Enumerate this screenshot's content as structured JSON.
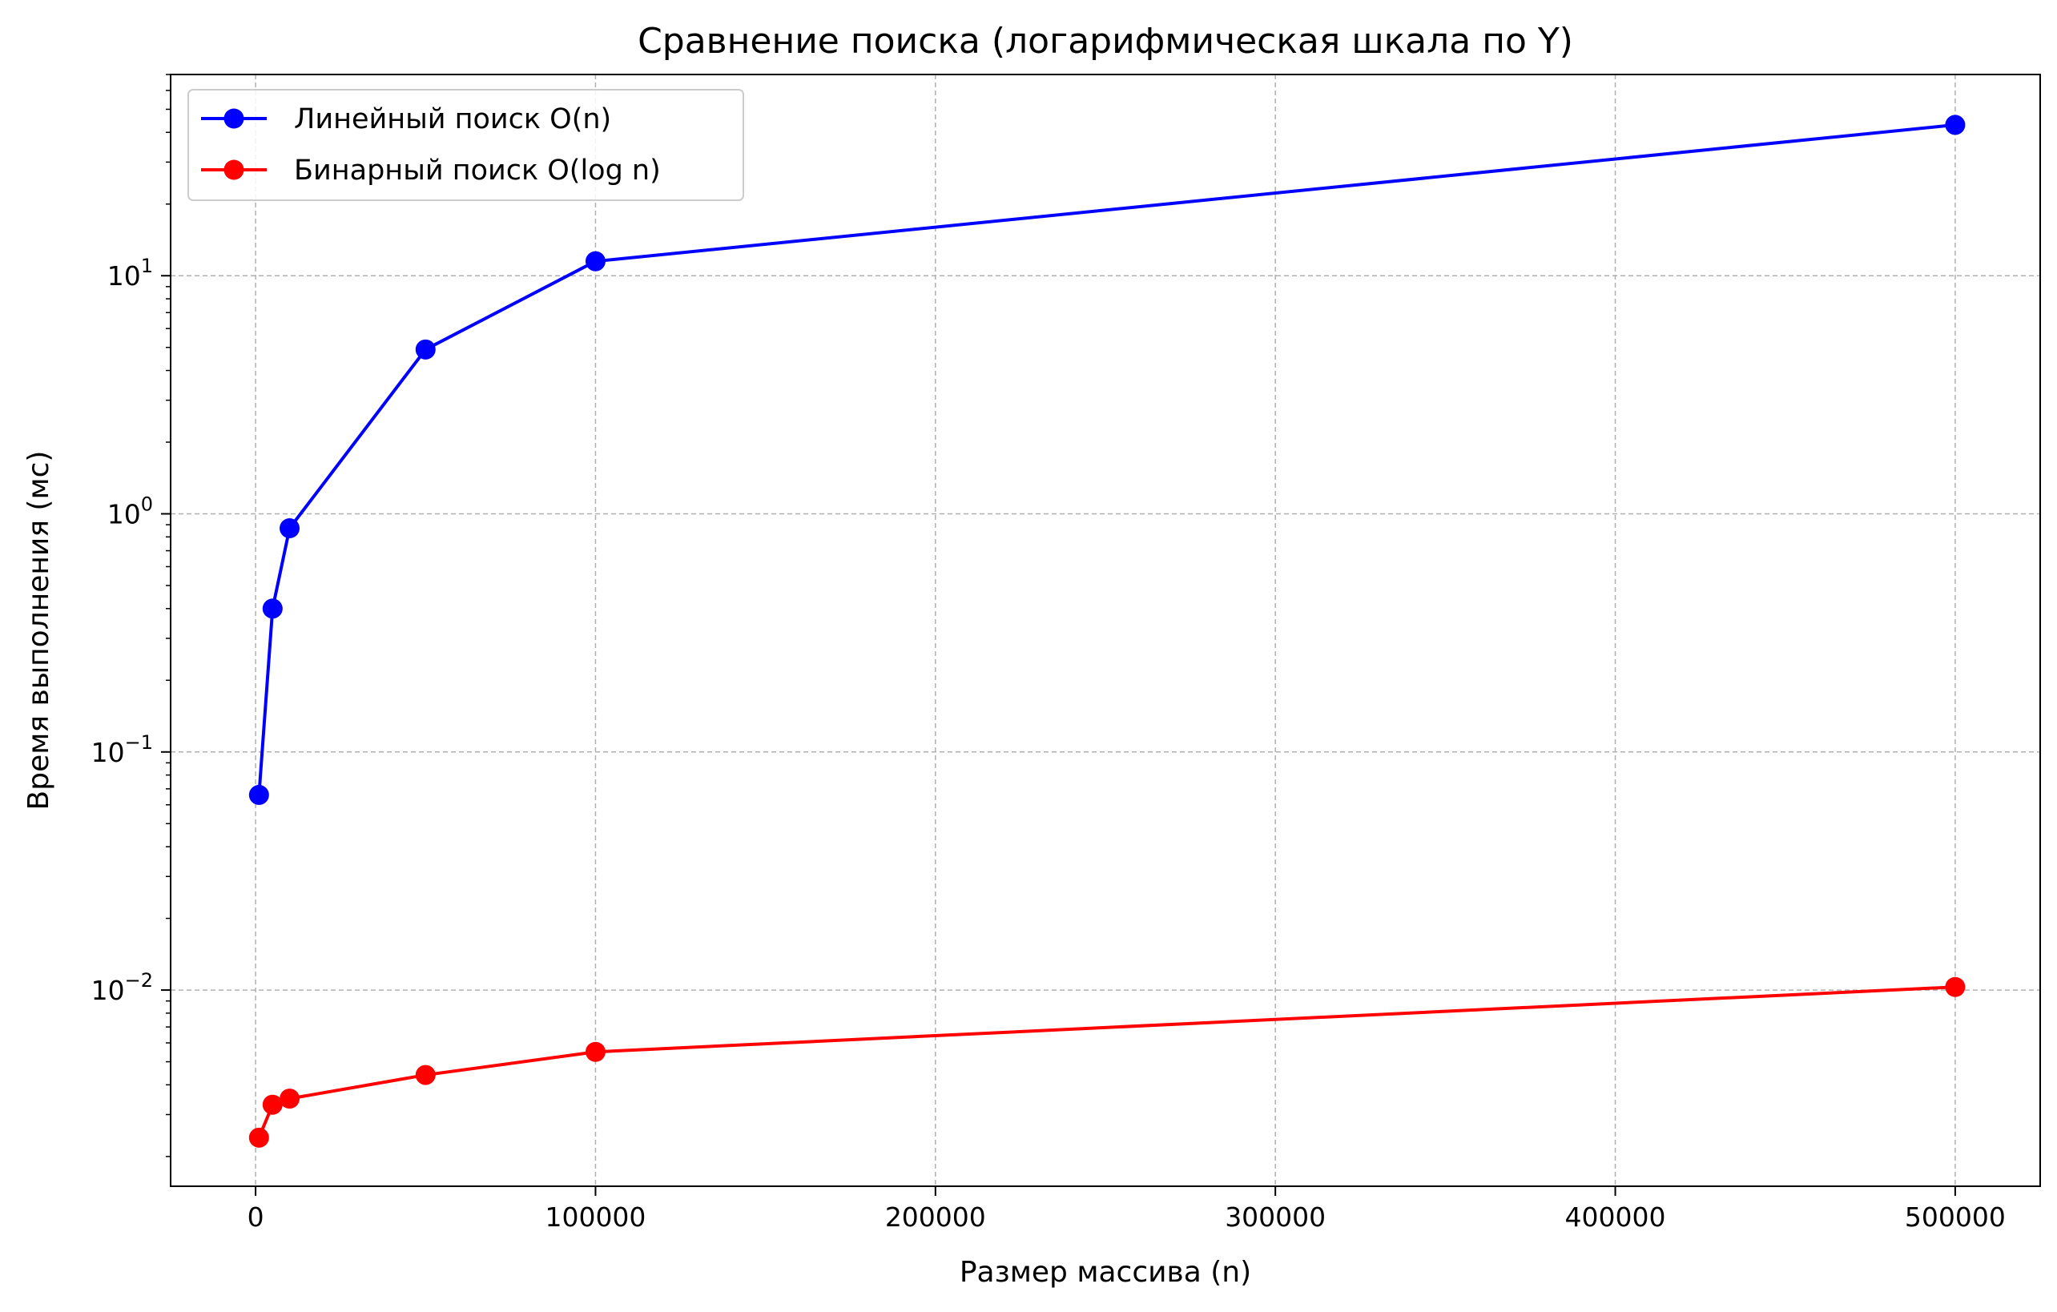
{
  "chart_data": {
    "type": "line",
    "title": "Сравнение поиска (логарифмическая шкала по Y)",
    "xlabel": "Размер массива (n)",
    "ylabel": "Время выполнения (мс)",
    "x_scale": "linear",
    "y_scale": "log",
    "xlim": [
      -25000,
      525000
    ],
    "ylim": [
      0.0015,
      70
    ],
    "x_ticks": [
      0,
      100000,
      200000,
      300000,
      400000,
      500000
    ],
    "x_tick_labels": [
      "0",
      "100000",
      "200000",
      "300000",
      "400000",
      "500000"
    ],
    "y_ticks": [
      0.01,
      0.1,
      1,
      10
    ],
    "y_tick_labels": [
      {
        "base": "10",
        "exp": "−2"
      },
      {
        "base": "10",
        "exp": "−1"
      },
      {
        "base": "10",
        "exp": "0"
      },
      {
        "base": "10",
        "exp": "1"
      }
    ],
    "grid": true,
    "legend_position": "top-left",
    "x": [
      1000,
      5000,
      10000,
      50000,
      100000,
      500000
    ],
    "series": [
      {
        "name": "Линейный поиск O(n)",
        "color": "#0000ff",
        "marker": "circle",
        "values": [
          0.066,
          0.4,
          0.87,
          4.9,
          11.5,
          43
        ]
      },
      {
        "name": "Бинарный поиск O(log n)",
        "color": "#ff0000",
        "marker": "circle",
        "values": [
          0.0024,
          0.0033,
          0.0035,
          0.0044,
          0.0055,
          0.0103
        ]
      }
    ]
  }
}
